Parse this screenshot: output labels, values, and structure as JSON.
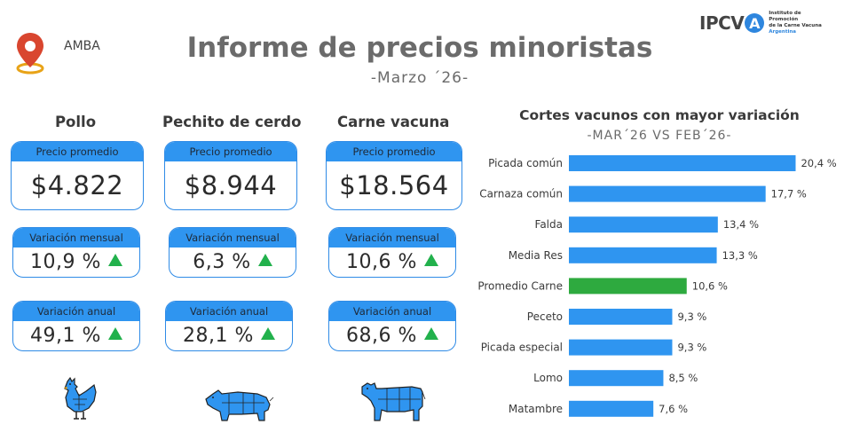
{
  "header": {
    "location": "AMBA",
    "title": "Informe de precios minoristas",
    "subtitle": "-Marzo ´26-"
  },
  "logo": {
    "text": "IPCV",
    "letter": "A",
    "line1": "Instituto de Promoción",
    "line2": "de la Carne Vacuna",
    "line3": "Argentina"
  },
  "colors": {
    "accent": "#2f95f0",
    "highlight": "#2eaa3f",
    "up": "#22b14c"
  },
  "products": [
    {
      "name": "Pollo",
      "price_label": "Precio promedio",
      "price": "$4.822",
      "monthly_label": "Variación mensual",
      "monthly": "10,9 %",
      "annual_label": "Variación anual",
      "annual": "49,1 %",
      "icon": "chicken-icon"
    },
    {
      "name": "Pechito de cerdo",
      "price_label": "Precio promedio",
      "price": "$8.944",
      "monthly_label": "Variación mensual",
      "monthly": "6,3 %",
      "annual_label": "Variación anual",
      "annual": "28,1 %",
      "icon": "pig-icon"
    },
    {
      "name": "Carne vacuna",
      "price_label": "Precio promedio",
      "price": "$18.564",
      "monthly_label": "Variación mensual",
      "monthly": "10,6 %",
      "annual_label": "Variación anual",
      "annual": "68,6 %",
      "icon": "cow-icon"
    }
  ],
  "chart_data": {
    "type": "bar",
    "orientation": "horizontal",
    "title": "Cortes vacunos con mayor variación",
    "subtitle": "-MAR´26 VS FEB´26-",
    "categories": [
      "Picada común",
      "Carnaza común",
      "Falda",
      "Media Res",
      "Promedio Carne",
      "Peceto",
      "Picada especial",
      "Lomo",
      "Matambre"
    ],
    "values": [
      20.4,
      17.7,
      13.4,
      13.3,
      10.6,
      9.3,
      9.3,
      8.5,
      7.6
    ],
    "labels": [
      "20,4 %",
      "17,7 %",
      "13,4 %",
      "13,3 %",
      "10,6 %",
      "9,3 %",
      "9,3 %",
      "8,5 %",
      "7,6 %"
    ],
    "highlight_category": "Promedio Carne",
    "xlim": [
      0,
      21
    ],
    "grid": false,
    "legend": "none"
  }
}
